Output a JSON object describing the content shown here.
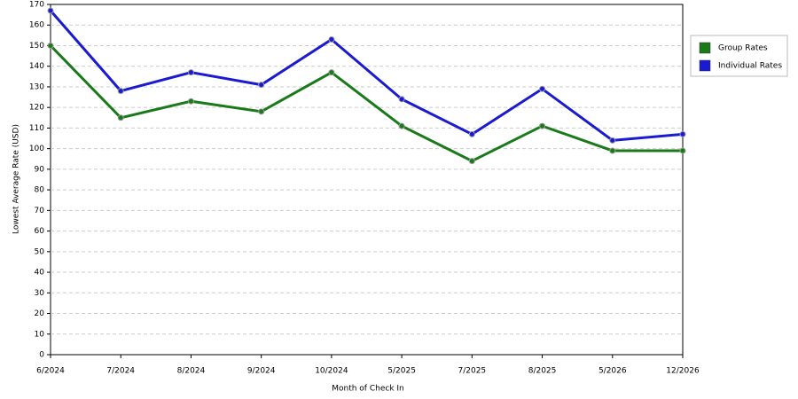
{
  "chart_data": {
    "type": "line",
    "x_label": "Month of Check In",
    "y_label": "Lowest Average Rate (USD)",
    "categories": [
      "6/2024",
      "7/2024",
      "8/2024",
      "9/2024",
      "10/2024",
      "5/2025",
      "7/2025",
      "8/2025",
      "5/2026",
      "12/2026"
    ],
    "series": [
      {
        "name": "Group Rates",
        "color": "#1a7a1a",
        "values": [
          150,
          115,
          123,
          118,
          137,
          111,
          94,
          111,
          99,
          99
        ]
      },
      {
        "name": "Individual Rates",
        "color": "#1a1ad0",
        "values": [
          167,
          128,
          137,
          131,
          153,
          124,
          107,
          129,
          104,
          107
        ]
      }
    ],
    "ylim": [
      0,
      170
    ],
    "yticks": [
      0,
      10,
      20,
      30,
      40,
      50,
      60,
      70,
      80,
      90,
      100,
      110,
      120,
      130,
      140,
      150,
      160,
      170
    ],
    "grid": true,
    "legend": "right"
  }
}
